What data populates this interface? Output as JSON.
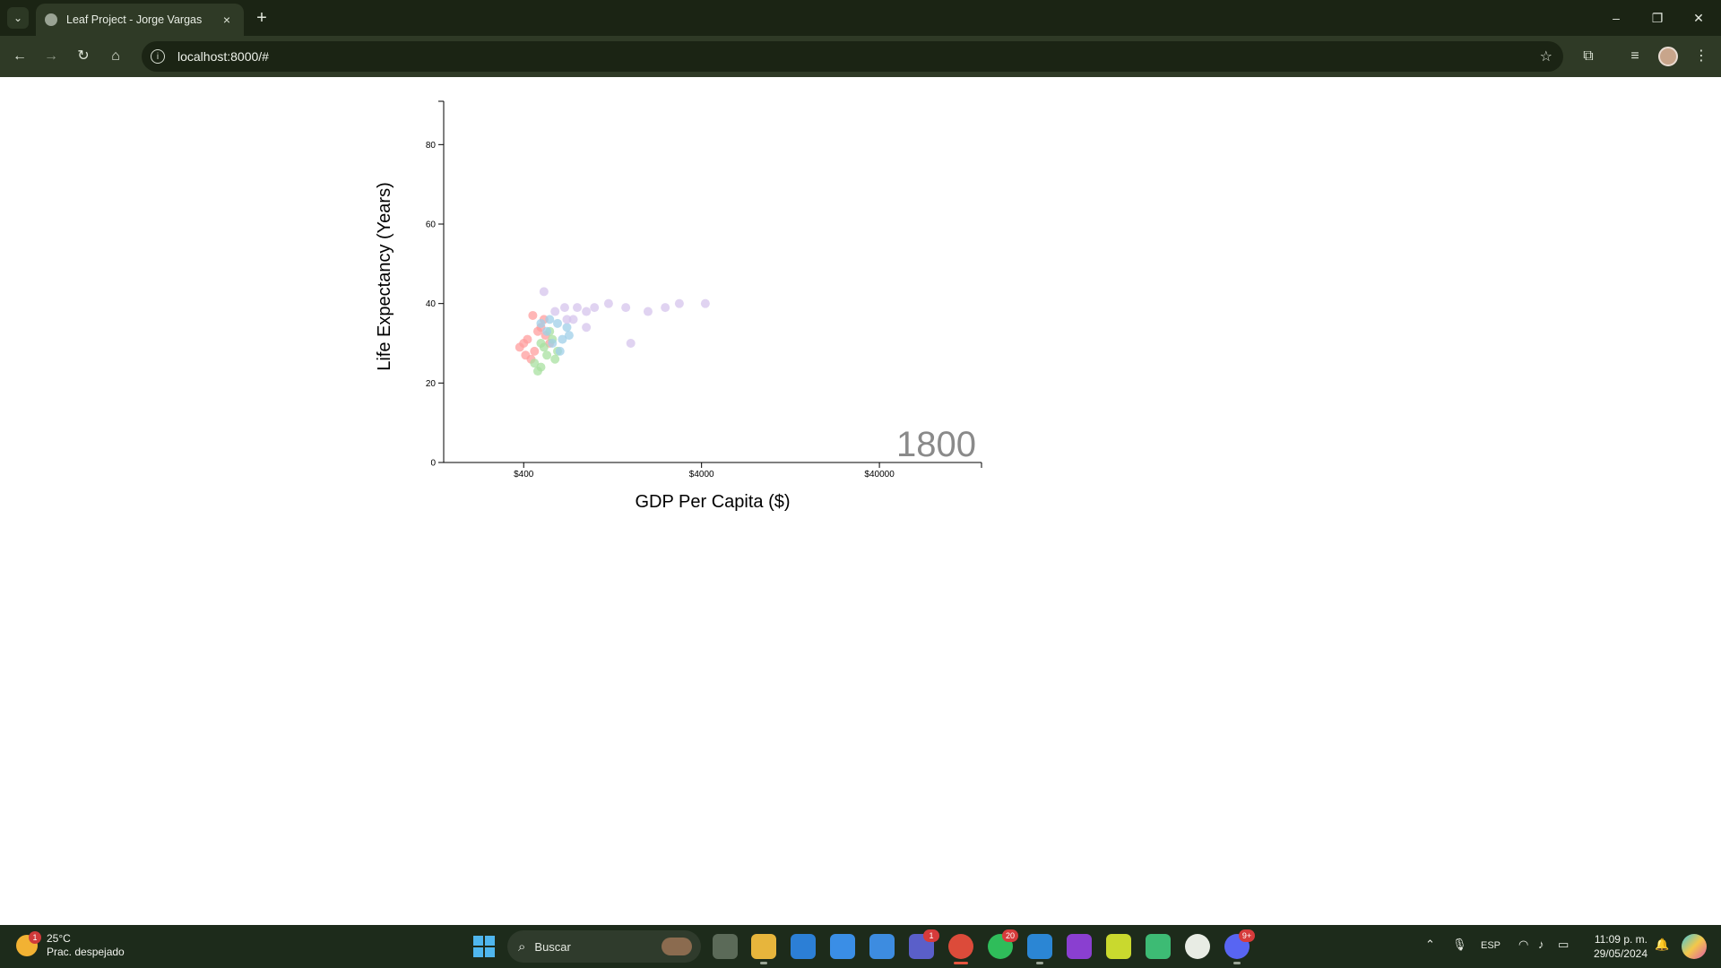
{
  "browser": {
    "tab_title": "Leaf Project - Jorge Vargas",
    "tab_close_glyph": "×",
    "new_tab_glyph": "+",
    "url": "localhost:8000/#",
    "window_controls": {
      "minimize": "–",
      "maximize": "❐",
      "close": "✕"
    },
    "toolbar_icons": [
      "back-icon",
      "forward-icon",
      "reload-icon",
      "home-icon",
      "bookmark-star-icon",
      "extensions-icon",
      "tab-search-icon",
      "profile-avatar",
      "menu-icon"
    ]
  },
  "chart_data": {
    "type": "scatter",
    "title": "",
    "xlabel": "GDP Per Capita ($)",
    "ylabel": "Life Expectancy (Years)",
    "year_label": "1800",
    "x_scale": "log",
    "xlim": [
      142,
      150000
    ],
    "ylim": [
      0,
      90
    ],
    "x_ticks": [
      400,
      4000,
      40000
    ],
    "x_tick_labels": [
      "$400",
      "$4000",
      "$40000"
    ],
    "y_ticks": [
      0,
      20,
      40,
      60,
      80
    ],
    "y_tick_labels": [
      "0",
      "20",
      "40",
      "60",
      "80"
    ],
    "grid": false,
    "legend": "none",
    "series": [
      {
        "color": "#ff9e9e",
        "points": [
          [
            420,
            31
          ],
          [
            460,
            28
          ],
          [
            500,
            34
          ],
          [
            380,
            29
          ],
          [
            440,
            26
          ],
          [
            520,
            36
          ],
          [
            480,
            33
          ],
          [
            400,
            30
          ],
          [
            560,
            30
          ],
          [
            450,
            37
          ],
          [
            410,
            27
          ],
          [
            530,
            32
          ]
        ]
      },
      {
        "color": "#a8e0a0",
        "points": [
          [
            460,
            25
          ],
          [
            500,
            24
          ],
          [
            540,
            27
          ],
          [
            600,
            26
          ],
          [
            520,
            29
          ],
          [
            580,
            31
          ],
          [
            480,
            23
          ],
          [
            620,
            28
          ],
          [
            560,
            33
          ],
          [
            500,
            30
          ]
        ]
      },
      {
        "color": "#9fcfe8",
        "points": [
          [
            540,
            33
          ],
          [
            620,
            35
          ],
          [
            580,
            30
          ],
          [
            660,
            31
          ],
          [
            700,
            34
          ],
          [
            500,
            35
          ],
          [
            640,
            28
          ],
          [
            720,
            32
          ],
          [
            560,
            36
          ]
        ]
      },
      {
        "color": "#d5c4ec",
        "points": [
          [
            600,
            38
          ],
          [
            700,
            36
          ],
          [
            800,
            39
          ],
          [
            900,
            38
          ],
          [
            1000,
            39
          ],
          [
            1200,
            40
          ],
          [
            1500,
            39
          ],
          [
            2000,
            38
          ],
          [
            2500,
            39
          ],
          [
            3000,
            40
          ],
          [
            4200,
            40
          ],
          [
            520,
            43
          ],
          [
            1600,
            30
          ],
          [
            900,
            34
          ],
          [
            760,
            36
          ],
          [
            680,
            39
          ]
        ]
      }
    ]
  },
  "taskbar": {
    "weather_temp": "25°C",
    "weather_desc": "Prac. despejado",
    "weather_badge": "1",
    "search_label": "Buscar",
    "teams_badge": "1",
    "whatsapp_badge": "20",
    "discord_badge": "9+",
    "language": "ESP",
    "time": "11:09 p. m.",
    "date": "29/05/2024"
  }
}
